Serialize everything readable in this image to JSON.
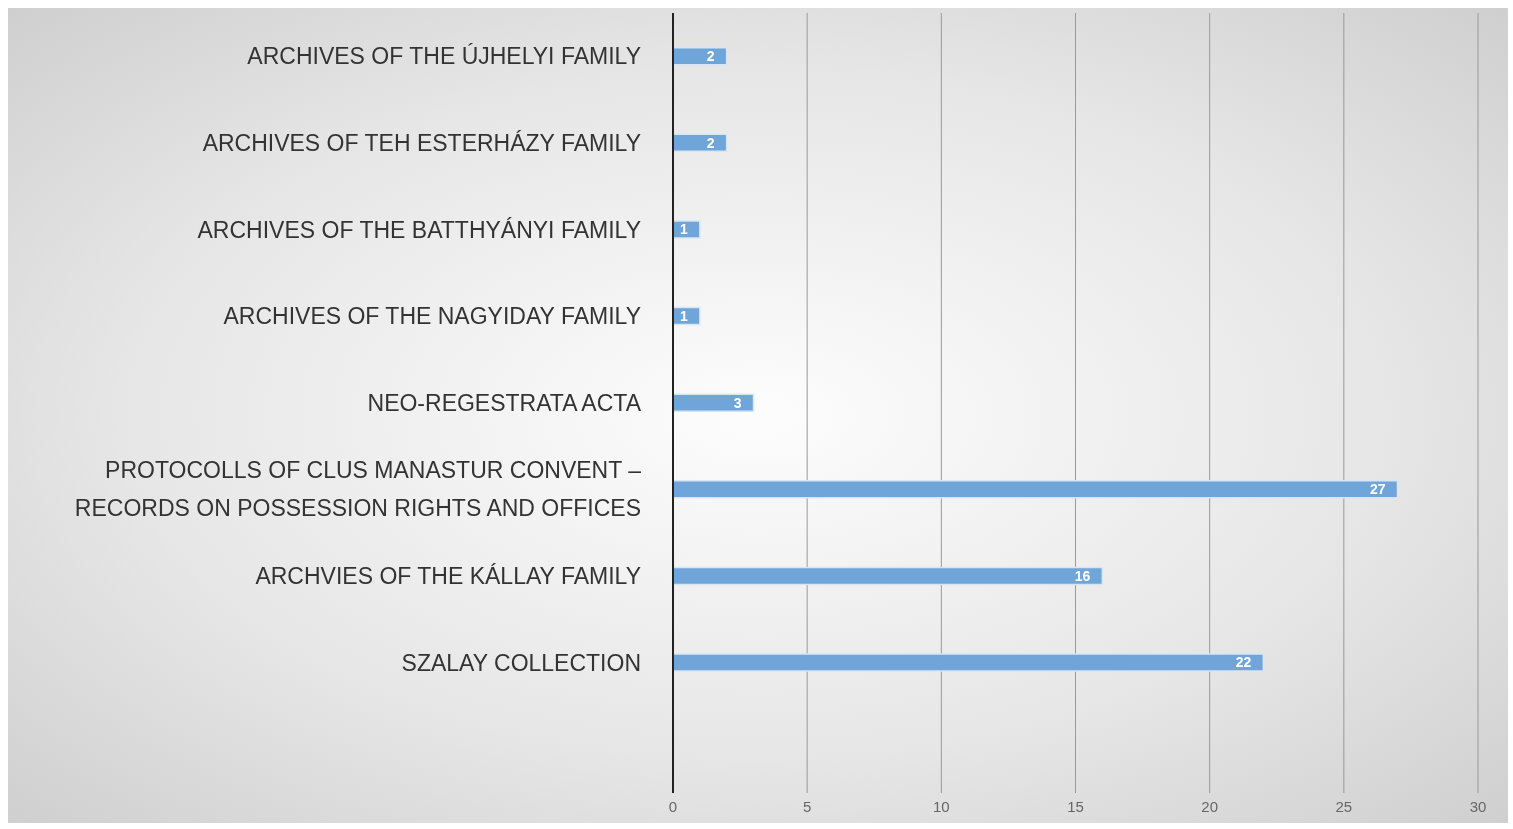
{
  "chart_data": {
    "type": "bar",
    "orientation": "horizontal",
    "categories": [
      "ARCHIVES OF THE ÚJHELYI FAMILY",
      "ARCHIVES OF TEH ESTERHÁZY FAMILY",
      "ARCHIVES OF THE BATTHYÁNYI FAMILY",
      "ARCHIVES OF THE NAGYIDAY FAMILY",
      "NEO-REGESTRATA  ACTA",
      "PROTOCOLLS OF CLUS MANASTUR CONVENT – RECORDS ON POSSESSION RIGHTS AND OFFICES",
      "ARCHVIES OF THE KÁLLAY FAMILY",
      "SZALAY COLLECTION"
    ],
    "values": [
      2,
      2,
      1,
      1,
      3,
      27,
      16,
      22
    ],
    "color": "#6fa5d8",
    "xlim": [
      0,
      30
    ],
    "xticks": [
      0,
      5,
      10,
      15,
      20,
      25,
      30
    ],
    "grid": "x",
    "data_labels": true,
    "legend": false
  }
}
